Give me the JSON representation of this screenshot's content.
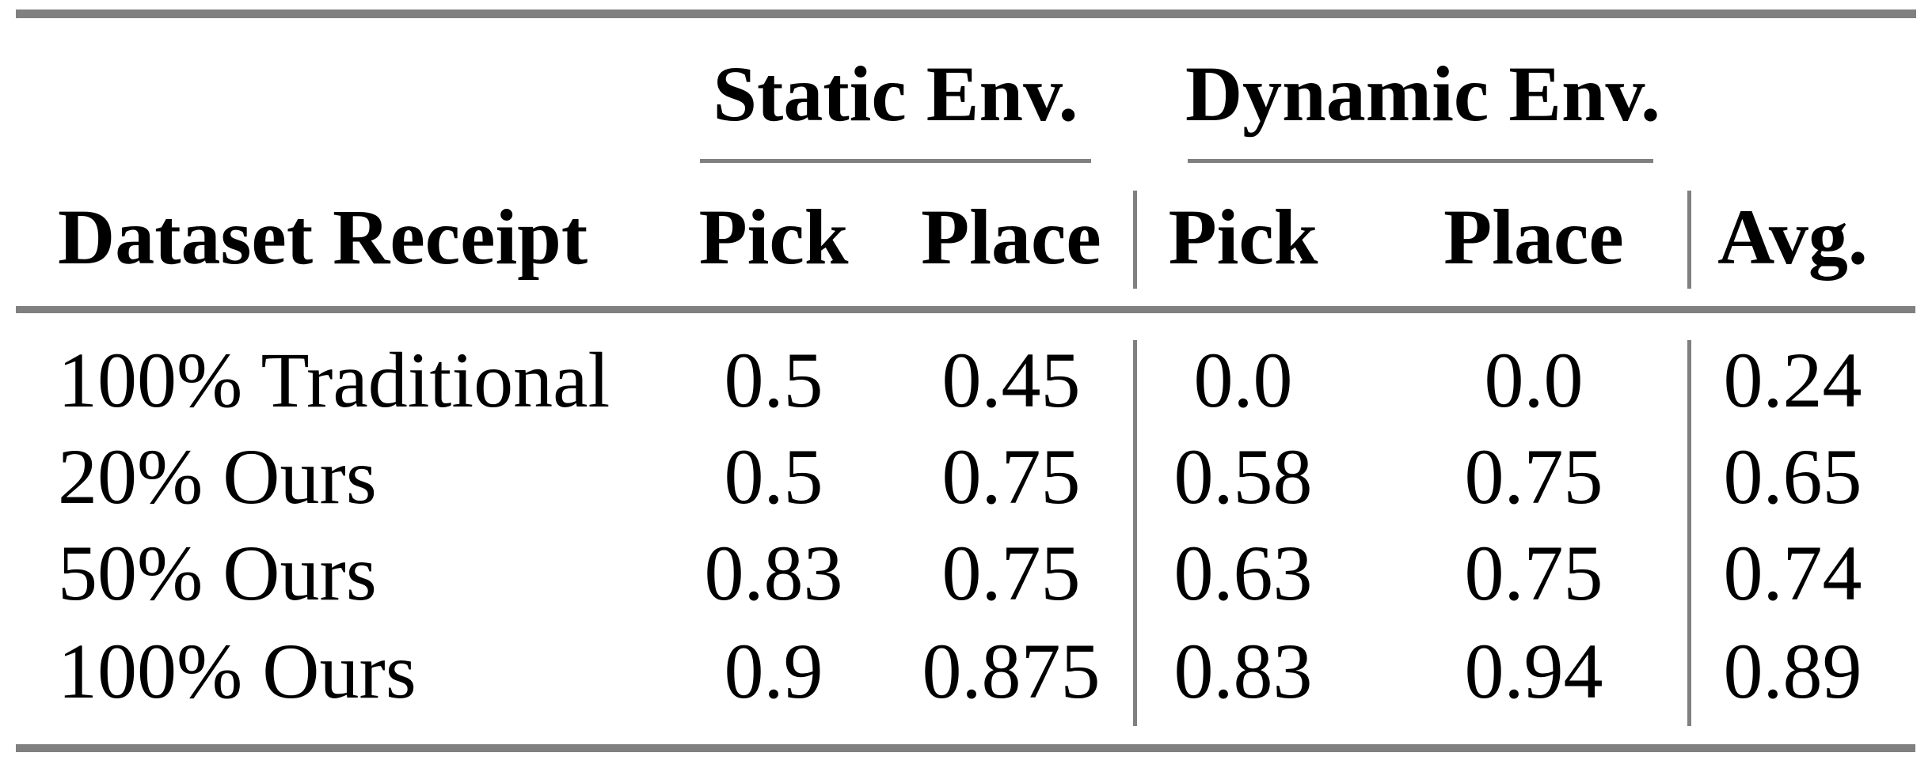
{
  "colors": {
    "rule_gray": "#808080",
    "text": "#000000",
    "background": "#ffffff"
  },
  "table": {
    "groups": {
      "static": "Static Env.",
      "dynamic": "Dynamic Env."
    },
    "headers": {
      "row_header": "Dataset Receipt",
      "static_pick": "Pick",
      "static_place": "Place",
      "dynamic_pick": "Pick",
      "dynamic_place": "Place",
      "avg": "Avg."
    },
    "rows": [
      {
        "label": "100% Traditional",
        "static_pick": "0.5",
        "static_place": "0.45",
        "dyn_pick": "0.0",
        "dyn_place": "0.0",
        "avg": "0.24"
      },
      {
        "label": "20% Ours",
        "static_pick": "0.5",
        "static_place": "0.75",
        "dyn_pick": "0.58",
        "dyn_place": "0.75",
        "avg": "0.65"
      },
      {
        "label": "50% Ours",
        "static_pick": "0.83",
        "static_place": "0.75",
        "dyn_pick": "0.63",
        "dyn_place": "0.75",
        "avg": "0.74"
      },
      {
        "label": "100% Ours",
        "static_pick": "0.9",
        "static_place": "0.875",
        "dyn_pick": "0.83",
        "dyn_place": "0.94",
        "avg": "0.89"
      }
    ]
  },
  "chart_data": {
    "type": "table",
    "columns": [
      "Dataset Receipt",
      "Static Env. Pick",
      "Static Env. Place",
      "Dynamic Env. Pick",
      "Dynamic Env. Place",
      "Avg."
    ],
    "rows": [
      [
        "100% Traditional",
        0.5,
        0.45,
        0.0,
        0.0,
        0.24
      ],
      [
        "20% Ours",
        0.5,
        0.75,
        0.58,
        0.75,
        0.65
      ],
      [
        "50% Ours",
        0.83,
        0.75,
        0.63,
        0.75,
        0.74
      ],
      [
        "100% Ours",
        0.9,
        0.875,
        0.83,
        0.94,
        0.89
      ]
    ]
  }
}
